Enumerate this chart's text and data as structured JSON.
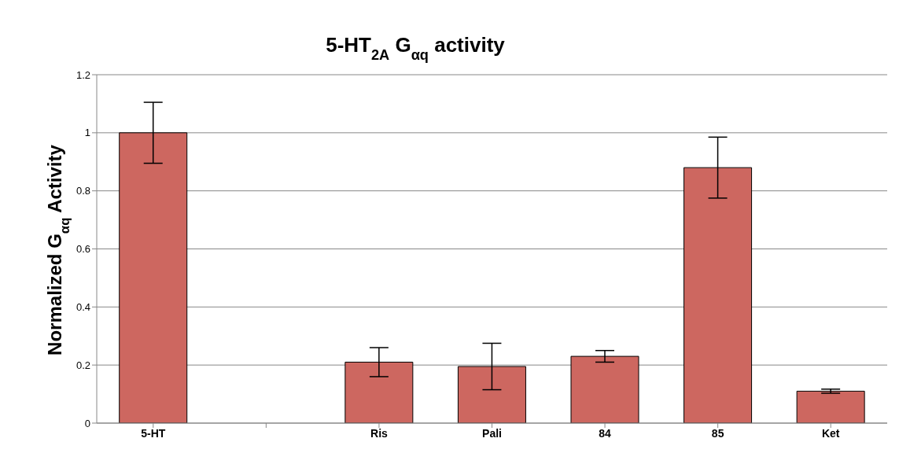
{
  "chart_data": {
    "type": "bar",
    "title": "5-HT$_{2A}$ G$_{αq}$ activity",
    "ylabel": "Normalized G$_{αq}$ Activity",
    "categories": [
      "5-HT",
      null,
      "Ris",
      "Pali",
      "84",
      "85",
      "Ket"
    ],
    "values": [
      1.0,
      null,
      0.21,
      0.195,
      0.23,
      0.88,
      0.11
    ],
    "errors": [
      0.105,
      null,
      0.05,
      0.08,
      0.02,
      0.105,
      0.007
    ],
    "color": "#cd6760",
    "ylim": [
      0,
      1.2
    ],
    "yticks": [
      0,
      0.2,
      0.4,
      0.6,
      0.8,
      1,
      1.2
    ],
    "grid": "y"
  }
}
